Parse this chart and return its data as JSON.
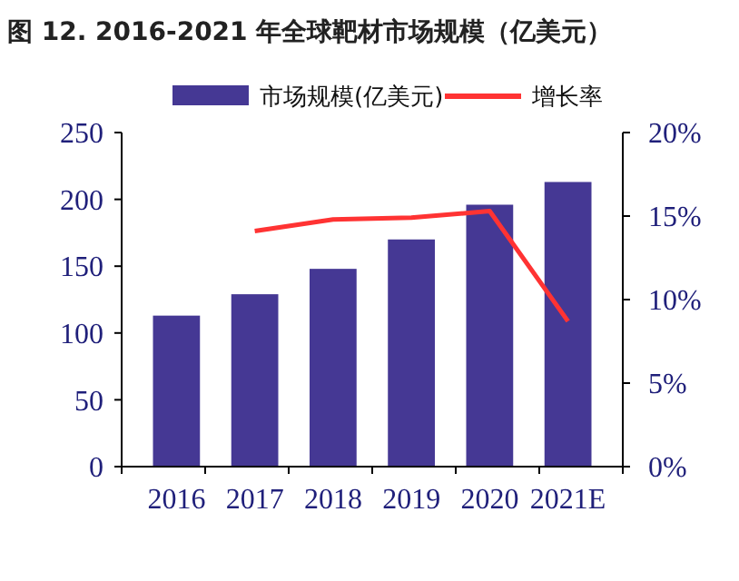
{
  "chart_data": {
    "type": "bar",
    "title": "图 12. 2016-2021 年全球靶材市场规模（亿美元）",
    "categories": [
      "2016",
      "2017",
      "2018",
      "2019",
      "2020",
      "2021E"
    ],
    "series": [
      {
        "name": "市场规模(亿美元)",
        "color": "#453894",
        "values": [
          113,
          129,
          148,
          170,
          196,
          213
        ]
      },
      {
        "name": "增长率",
        "type": "line",
        "axis": "y2",
        "color": "#ff3333",
        "values": [
          null,
          14.1,
          14.8,
          14.9,
          15.3,
          8.7
        ]
      }
    ],
    "ylim": [
      0,
      250
    ],
    "yticks": [
      0,
      50,
      100,
      150,
      200,
      250
    ],
    "y2lim": [
      0,
      20
    ],
    "y2ticks": [
      {
        "value": 0,
        "label": "0%"
      },
      {
        "value": 5,
        "label": "5%"
      },
      {
        "value": 10,
        "label": "10%"
      },
      {
        "value": 15,
        "label": "15%"
      },
      {
        "value": 20,
        "label": "20%"
      }
    ],
    "legend": "top",
    "grid": false
  }
}
